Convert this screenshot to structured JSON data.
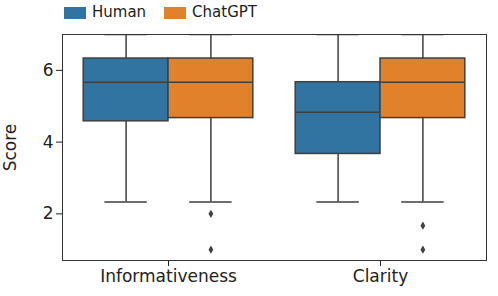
{
  "chart_data": {
    "type": "boxplot",
    "y_label": "Score",
    "categories": [
      "Informativeness",
      "Clarity"
    ],
    "ylim": [
      0.7,
      7
    ],
    "yticks": [
      2,
      4,
      6
    ],
    "series": [
      {
        "name": "Human",
        "color": "#3274a1",
        "whisker_low": [
          2.33,
          2.33
        ],
        "q1": [
          4.58,
          3.67
        ],
        "median": [
          5.67,
          4.83
        ],
        "q3": [
          6.33,
          5.67
        ],
        "whisker_high": [
          7,
          7
        ],
        "outliers": [
          [],
          []
        ]
      },
      {
        "name": "ChatGPT",
        "color": "#e1812c",
        "whisker_low": [
          2.33,
          2.33
        ],
        "q1": [
          4.67,
          4.67
        ],
        "median": [
          5.67,
          5.67
        ],
        "q3": [
          6.33,
          6.33
        ],
        "whisker_high": [
          7,
          7
        ],
        "outliers": [
          [
            2,
            1
          ],
          [
            1.67,
            1
          ]
        ]
      }
    ]
  }
}
